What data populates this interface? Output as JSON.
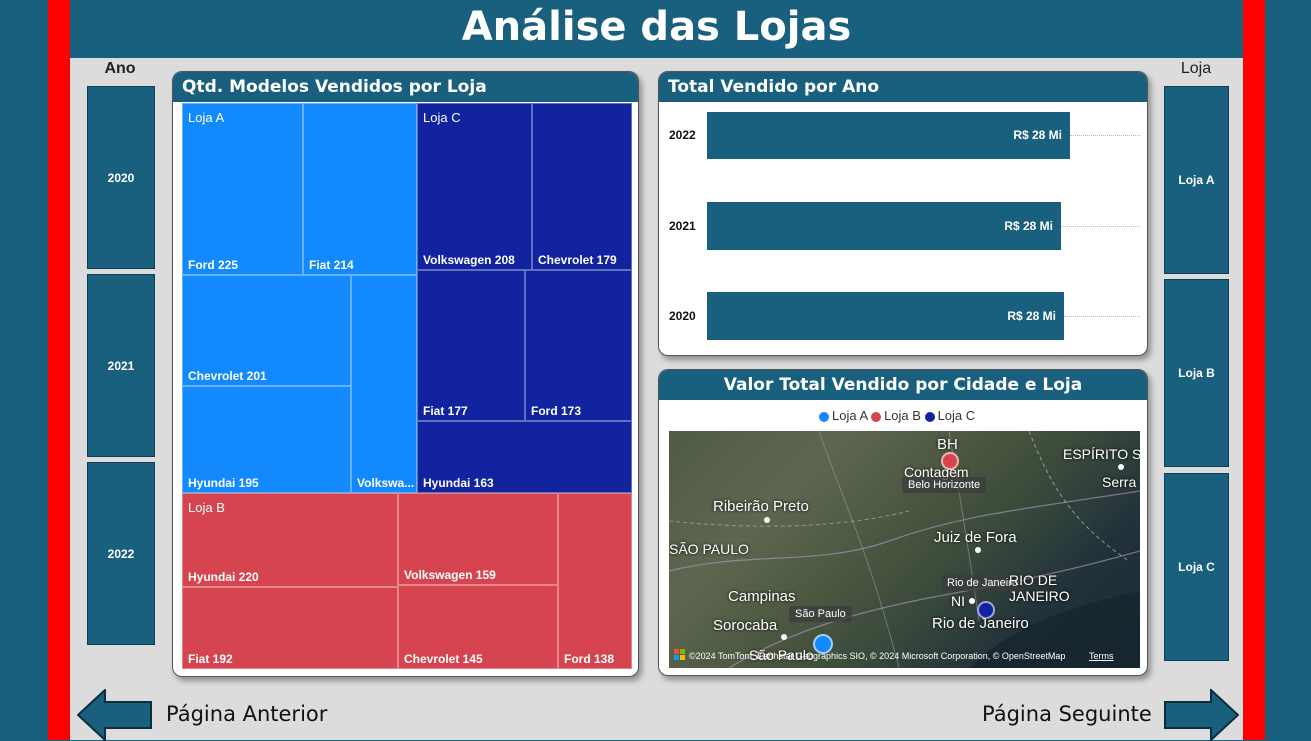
{
  "header": {
    "title": "Análise das Lojas"
  },
  "colors": {
    "loja_a": "#1389fe",
    "loja_b": "#d6444f",
    "loja_c": "#1223a0",
    "panel": "#195f7e",
    "frame_red": "#ff0000"
  },
  "slicer_ano": {
    "label": "Ano",
    "items": [
      "2020",
      "2021",
      "2022"
    ]
  },
  "slicer_loja": {
    "label": "Loja",
    "items": [
      "Loja A",
      "Loja B",
      "Loja C"
    ]
  },
  "treemap": {
    "title": "Qtd. Modelos Vendidos por Loja",
    "groups": {
      "a": "Loja A",
      "b": "Loja B",
      "c": "Loja C"
    },
    "tiles": {
      "a_ford": "Ford 225",
      "a_fiat": "Fiat 214",
      "a_chevrolet": "Chevrolet 201",
      "a_hyundai": "Hyundai 195",
      "a_volkswagen": "Volkswa...",
      "c_volkswagen": "Volkswagen 208",
      "c_chevrolet": "Chevrolet 179",
      "c_fiat": "Fiat 177",
      "c_ford": "Ford 173",
      "c_hyundai": "Hyundai 163",
      "b_hyundai": "Hyundai 220",
      "b_volkswagen": "Volkswagen 159",
      "b_fiat": "Fiat 192",
      "b_chevrolet": "Chevrolet 145",
      "b_ford": "Ford 138"
    }
  },
  "bar_chart": {
    "title": "Total Vendido por Ano",
    "rows": [
      {
        "year": "2022",
        "label": "R$ 28 Mi"
      },
      {
        "year": "2021",
        "label": "R$ 28 Mi"
      },
      {
        "year": "2020",
        "label": "R$ 28 Mi"
      }
    ]
  },
  "map": {
    "title": "Valor Total Vendido por Cidade e Loja",
    "legend": [
      "Loja A",
      "Loja B",
      "Loja C"
    ],
    "places": {
      "bh": "BH",
      "contagem": "Contagem",
      "belo_horizonte": "Belo Horizonte",
      "espirito": "ESPÍRITO S",
      "serra": "Serra",
      "ribeirao": "Ribeirão Preto",
      "sao_paulo_state": "SÃO PAULO",
      "juiz": "Juiz de Fora",
      "rio_bubble": "Rio de Janeiro",
      "rio_state": "RIO DE\nJANEIRO",
      "campinas": "Campinas",
      "sao_paulo_bubble": "São Paulo",
      "ni": "NI",
      "sorocaba": "Sorocaba",
      "rio_city": "Rio de Janeiro",
      "sao_paulo_city": "São Paulo"
    },
    "attribution": "©2024 TomTom, Earthstar Geographics SIO, © 2024 Microsoft Corporation, © OpenStreetMap",
    "terms": "Terms"
  },
  "nav": {
    "prev": "Página Anterior",
    "next": "Página Seguinte"
  }
}
